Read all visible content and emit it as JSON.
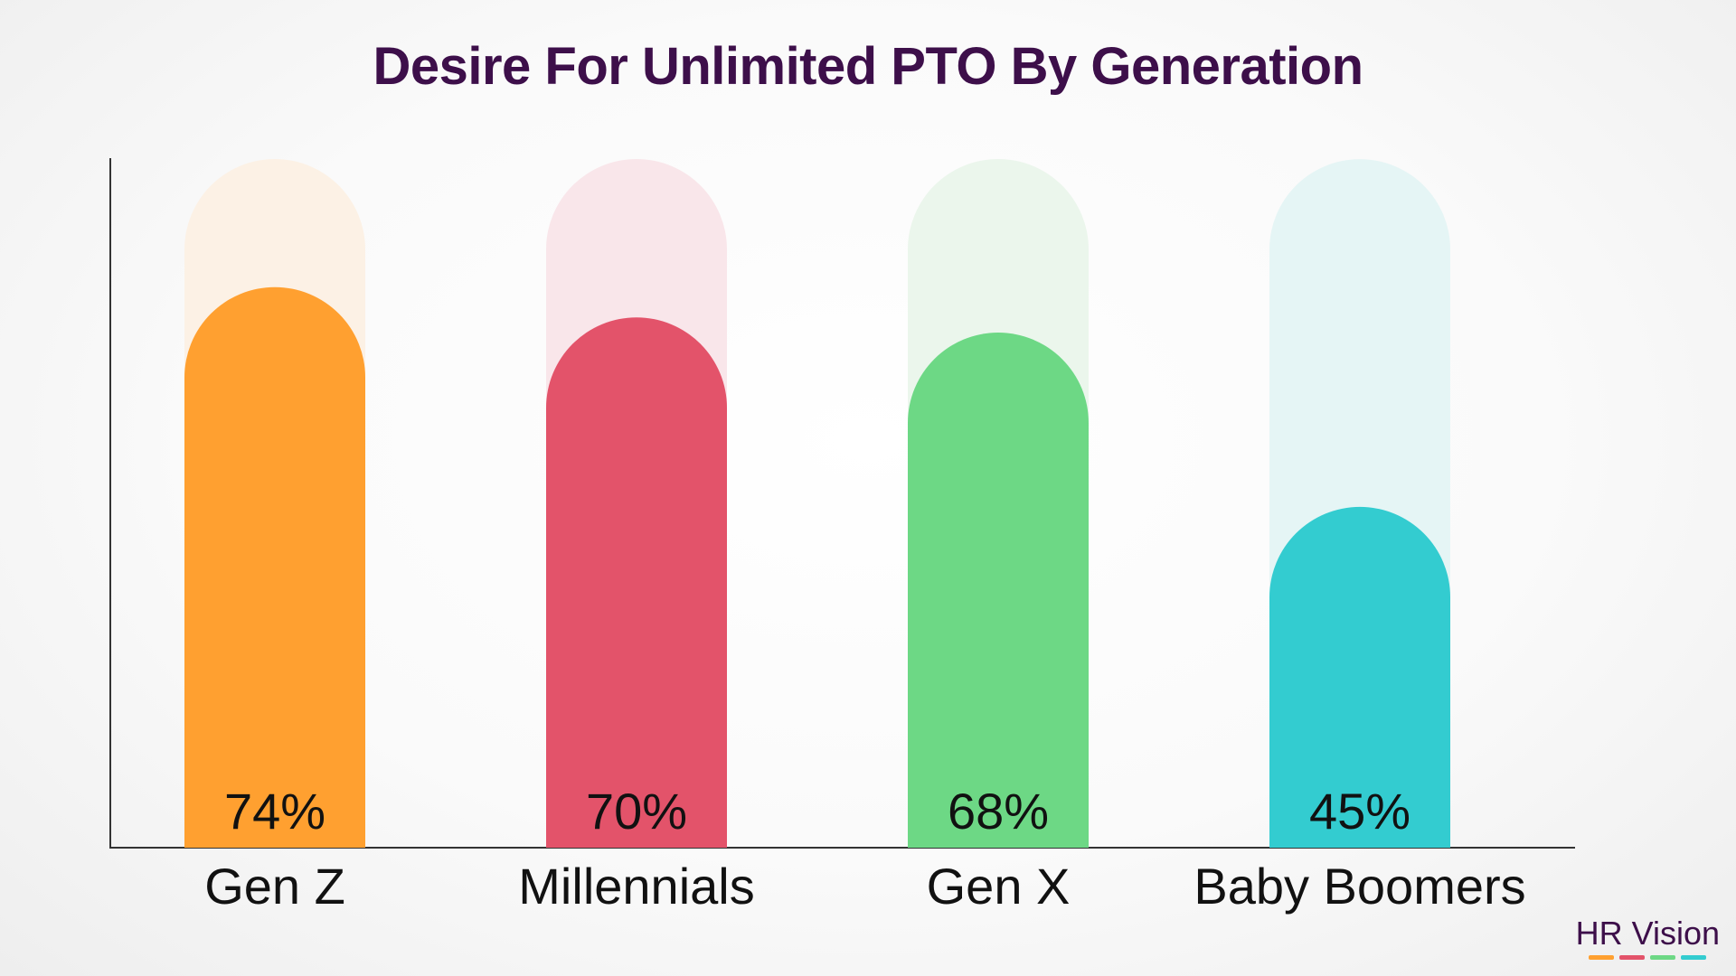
{
  "brand": {
    "text": "HR Vision",
    "stripe_colors": [
      "#ffa030",
      "#e3536a",
      "#6dd885",
      "#33ccd0"
    ]
  },
  "chart_data": {
    "type": "bar",
    "title": "Desire For Unlimited PTO By Generation",
    "categories": [
      "Gen Z",
      "Millennials",
      "Gen X",
      "Baby Boomers"
    ],
    "values": [
      74,
      70,
      68,
      45
    ],
    "value_labels": [
      "74%",
      "70%",
      "68%",
      "45%"
    ],
    "unit": "%",
    "ylim": [
      0,
      100
    ],
    "colors": [
      "#ffa030",
      "#e3536a",
      "#6dd885",
      "#33ccd0"
    ],
    "track_colors": [
      "#fcf1e5",
      "#f9e6ea",
      "#ebf6ec",
      "#e5f5f5"
    ],
    "xlabel": "",
    "ylabel": "",
    "grid": false,
    "legend": "none"
  }
}
